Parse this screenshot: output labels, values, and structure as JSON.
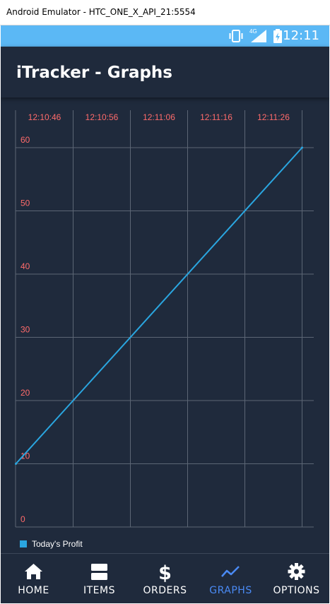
{
  "window": {
    "title": "Android Emulator - HTC_ONE_X_API_21:5554"
  },
  "statusbar": {
    "time": "12:11",
    "network": "4G"
  },
  "appbar": {
    "title": "iTracker - Graphs"
  },
  "chart_data": {
    "type": "line",
    "title": "",
    "xlabel": "",
    "ylabel": "",
    "x_tick_labels": [
      "12:10:46",
      "12:10:56",
      "12:11:06",
      "12:11:16",
      "12:11:26"
    ],
    "y_tick_labels": [
      "0",
      "10",
      "20",
      "30",
      "40",
      "50",
      "60"
    ],
    "ylim": [
      0,
      60
    ],
    "grid": true,
    "legend_placement": "bottom-left",
    "series": [
      {
        "name": "Today's Profit",
        "color": "#2aa6e0",
        "points": [
          {
            "x": "12:10:41",
            "y": 10
          },
          {
            "x": "12:11:31",
            "y": 60
          }
        ]
      }
    ],
    "tick_color": "#ff6b6b",
    "grid_color": "#5c6675"
  },
  "legend": {
    "label": "Today's Profit"
  },
  "nav": {
    "items": [
      {
        "label": "HOME",
        "icon": "home-icon",
        "active": false
      },
      {
        "label": "ITEMS",
        "icon": "items-icon",
        "active": false
      },
      {
        "label": "ORDERS",
        "icon": "dollar-icon",
        "active": false
      },
      {
        "label": "GRAPHS",
        "icon": "graph-icon",
        "active": true
      },
      {
        "label": "OPTIONS",
        "icon": "gear-icon",
        "active": false
      }
    ],
    "active_color": "#4a8af4"
  }
}
